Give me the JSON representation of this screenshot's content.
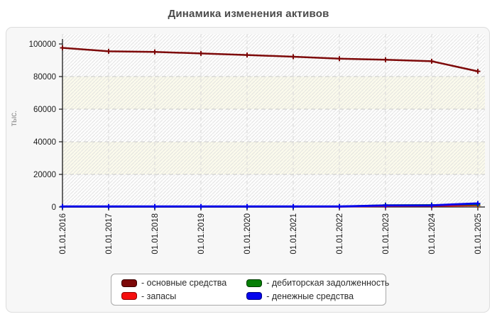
{
  "page": {
    "title": "Динамика изменения активов"
  },
  "chart_data": {
    "type": "line",
    "title": "Динамика изменения активов",
    "xlabel": "",
    "ylabel": "тыс.",
    "ylim": [
      0,
      100000
    ],
    "yticks": [
      0,
      20000,
      40000,
      60000,
      80000,
      100000
    ],
    "grid": "dashed-horizontal-and-vertical",
    "plot_background": "alternating hatched bands",
    "legend_position": "bottom-center-box",
    "categories": [
      "01.01.2016",
      "01.01.2017",
      "01.01.2018",
      "01.01.2019",
      "01.01.2020",
      "01.01.2021",
      "01.01.2022",
      "01.01.2023",
      "01.01.2024",
      "01.01.2025"
    ],
    "series": [
      {
        "name": "основные средства",
        "legend_label": "- основные средства",
        "color": "#7d0909",
        "swatch_border": "#3a0000",
        "line_width": 2.5,
        "values": [
          97600,
          95500,
          95100,
          94200,
          93200,
          92200,
          91000,
          90300,
          89400,
          83200
        ]
      },
      {
        "name": "запасы",
        "legend_label": "- запасы",
        "color": "#f50f0f",
        "swatch_border": "#8f0000",
        "line_width": 2,
        "values": [
          100,
          100,
          100,
          100,
          100,
          100,
          100,
          500,
          600,
          900
        ]
      },
      {
        "name": "дебиторская задолженность",
        "legend_label": "- дебиторская задолженность",
        "color": "#067f06",
        "swatch_border": "#003c00",
        "line_width": 2,
        "values": [
          100,
          100,
          100,
          100,
          100,
          100,
          400,
          1200,
          1300,
          1400
        ]
      },
      {
        "name": "денежные средства",
        "legend_label": "- денежные средства",
        "color": "#0505ec",
        "swatch_border": "#000080",
        "line_width": 3,
        "values": [
          300,
          300,
          300,
          300,
          300,
          300,
          300,
          900,
          1000,
          2200
        ]
      }
    ],
    "draw_order": [
      1,
      2,
      3,
      0
    ]
  },
  "style": {
    "card_bg": "#f7f7f7",
    "band_white": "#fdfdfd",
    "band_cream": "#fbfaec",
    "hatch_line": "#dcdcdc",
    "grid_h": "#c9c9c9",
    "grid_v": "#d8d8d8",
    "axis": "#1a1a1a",
    "tick_text": "#1a1a1a",
    "ylabel_text": "#8a8a8a",
    "title_text": "#4a4a4a"
  }
}
